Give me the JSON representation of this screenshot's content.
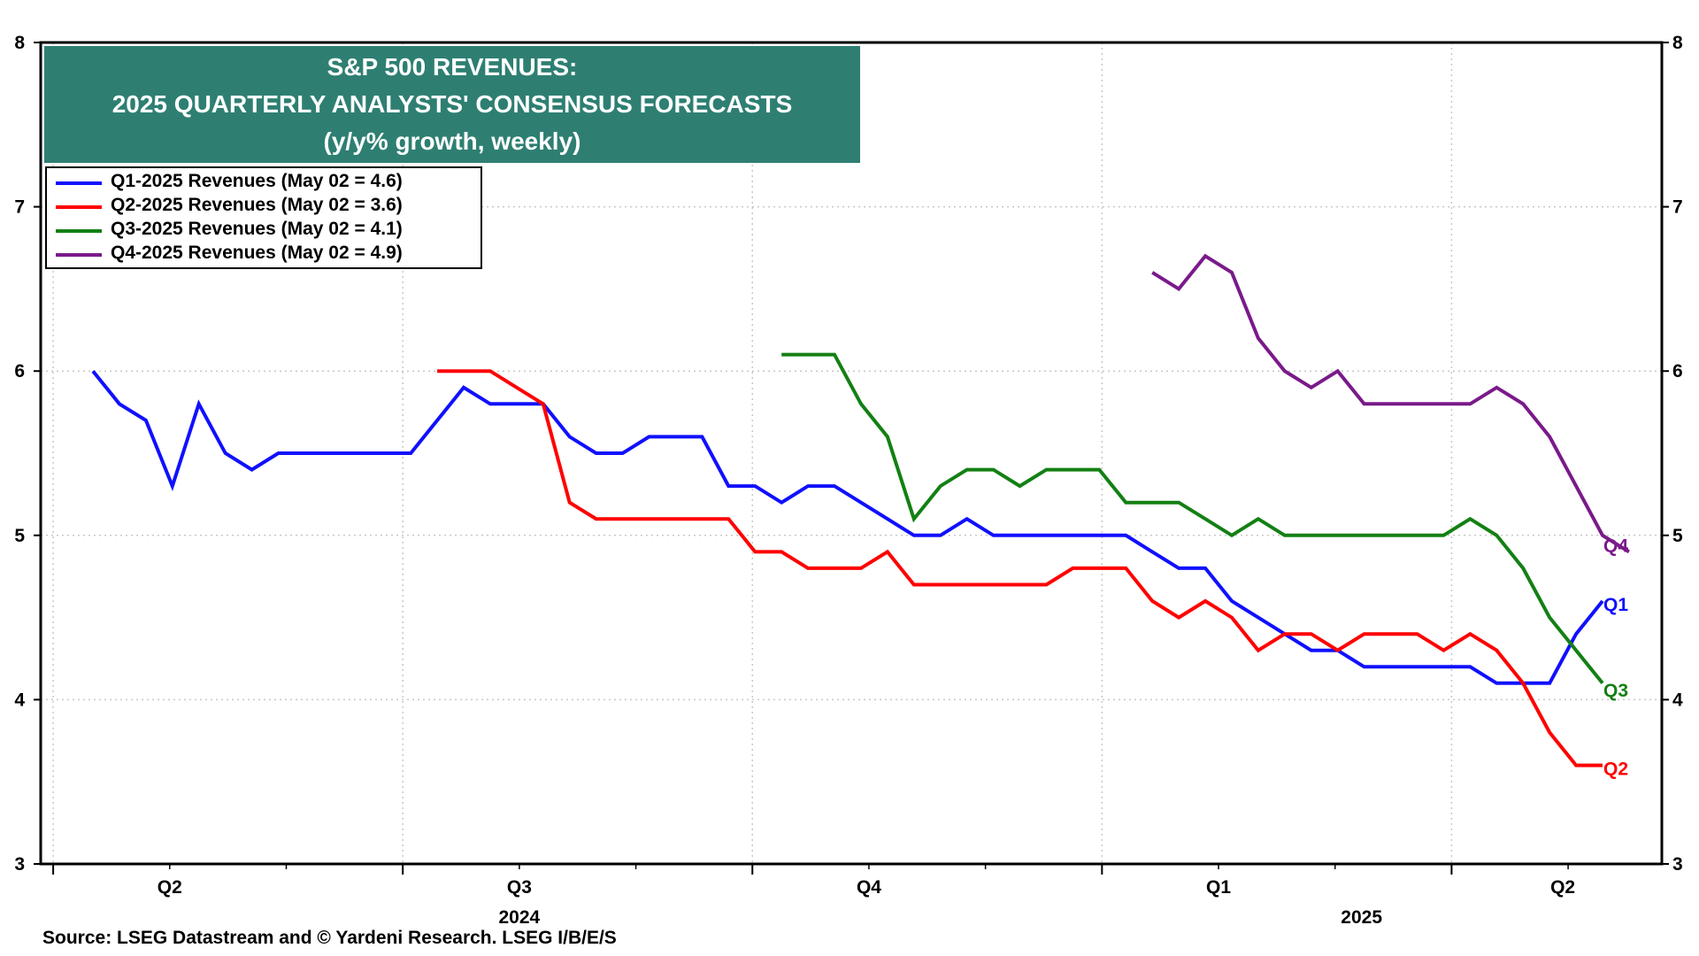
{
  "title": {
    "line1": "S&P 500 REVENUES:",
    "line2": "2025 QUARTERLY ANALYSTS' CONSENSUS FORECASTS",
    "line3": "(y/y% growth, weekly)"
  },
  "source": "Source: LSEG Datastream and © Yardeni Research. LSEG I/B/E/S",
  "colors": {
    "title_bg": "#2e7f72",
    "q1": "#1010ff",
    "q2": "#ff0000",
    "q3": "#138013",
    "q4": "#7a1a8a"
  },
  "chart_data": {
    "type": "line",
    "x_unit": "week index (weekly observations from Apr 2024 to May 02 2025)",
    "ylim": [
      3,
      8
    ],
    "yticks": [
      3,
      4,
      5,
      6,
      7,
      8
    ],
    "grid": true,
    "legend_position": "top-left",
    "quarter_ticks": [
      {
        "label": "Q2",
        "x": 2.9
      },
      {
        "label": "Q3",
        "x": 16.1
      },
      {
        "label": "Q4",
        "x": 29.3
      },
      {
        "label": "Q1",
        "x": 42.5
      },
      {
        "label": "Q2",
        "x": 55.5
      }
    ],
    "year_labels": [
      {
        "label": "2024",
        "x": 16.1
      },
      {
        "label": "2025",
        "x": 47.9
      }
    ],
    "series": [
      {
        "key": "q1",
        "name": "Q1-2025 Revenues (May 02 = 4.6)",
        "end_label": "Q1",
        "start_index": 0,
        "values": [
          6.0,
          5.8,
          5.7,
          5.3,
          5.8,
          5.5,
          5.4,
          5.5,
          5.5,
          5.5,
          5.5,
          5.5,
          5.5,
          5.7,
          5.9,
          5.8,
          5.8,
          5.8,
          5.6,
          5.5,
          5.5,
          5.6,
          5.6,
          5.6,
          5.3,
          5.3,
          5.2,
          5.3,
          5.3,
          5.2,
          5.1,
          5.0,
          5.0,
          5.1,
          5.0,
          5.0,
          5.0,
          5.0,
          5.0,
          5.0,
          4.9,
          4.8,
          4.8,
          4.6,
          4.5,
          4.4,
          4.3,
          4.3,
          4.2,
          4.2,
          4.2,
          4.2,
          4.2,
          4.1,
          4.1,
          4.1,
          4.4,
          4.6
        ]
      },
      {
        "key": "q2",
        "name": "Q2-2025 Revenues (May 02 = 3.6)",
        "end_label": "Q2",
        "start_index": 13,
        "values": [
          6.0,
          6.0,
          6.0,
          5.9,
          5.8,
          5.2,
          5.1,
          5.1,
          5.1,
          5.1,
          5.1,
          5.1,
          4.9,
          4.9,
          4.8,
          4.8,
          4.8,
          4.9,
          4.7,
          4.7,
          4.7,
          4.7,
          4.7,
          4.7,
          4.8,
          4.8,
          4.8,
          4.6,
          4.5,
          4.6,
          4.5,
          4.3,
          4.4,
          4.4,
          4.3,
          4.4,
          4.4,
          4.4,
          4.3,
          4.4,
          4.3,
          4.1,
          3.8,
          3.6,
          3.6
        ]
      },
      {
        "key": "q3",
        "name": "Q3-2025 Revenues (May 02 = 4.1)",
        "end_label": "Q3",
        "start_index": 26,
        "values": [
          6.1,
          6.1,
          6.1,
          5.8,
          5.6,
          5.1,
          5.3,
          5.4,
          5.4,
          5.3,
          5.4,
          5.4,
          5.4,
          5.2,
          5.2,
          5.2,
          5.1,
          5.0,
          5.1,
          5.0,
          5.0,
          5.0,
          5.0,
          5.0,
          5.0,
          5.0,
          5.1,
          5.0,
          4.8,
          4.5,
          4.3,
          4.1
        ]
      },
      {
        "key": "q4",
        "name": "Q4-2025 Revenues (May 02 = 4.9)",
        "end_label": "Q4",
        "start_index": 40,
        "values": [
          6.6,
          6.5,
          6.7,
          6.6,
          6.2,
          6.0,
          5.9,
          6.0,
          5.8,
          5.8,
          5.8,
          5.8,
          5.8,
          5.9,
          5.8,
          5.6,
          5.3,
          5.0,
          4.9
        ]
      }
    ]
  }
}
